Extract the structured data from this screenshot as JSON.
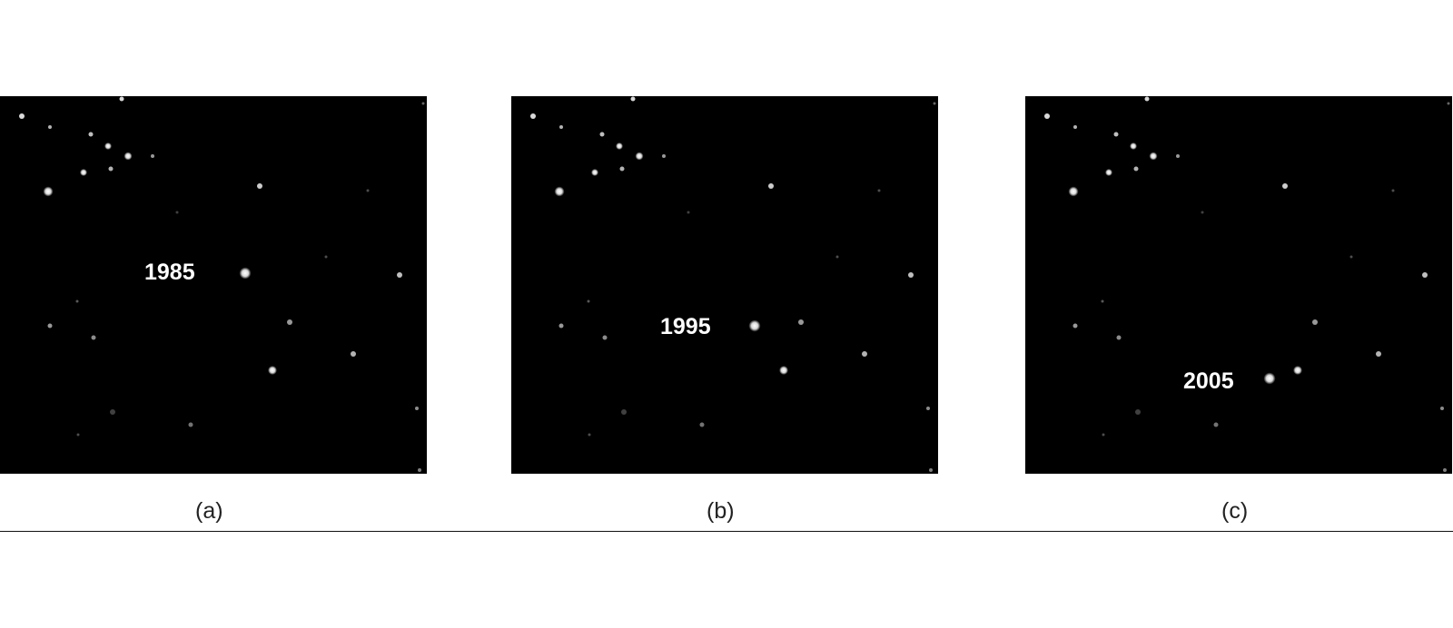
{
  "panels": [
    {
      "id": "a",
      "caption": "(a)",
      "year_label": "1985"
    },
    {
      "id": "b",
      "caption": "(b)",
      "year_label": "1995"
    },
    {
      "id": "c",
      "caption": "(c)",
      "year_label": "2005"
    }
  ],
  "colors": {
    "sky": "#000000",
    "star": "#ffffff",
    "page": "#ffffff",
    "caption_text": "#222222"
  }
}
